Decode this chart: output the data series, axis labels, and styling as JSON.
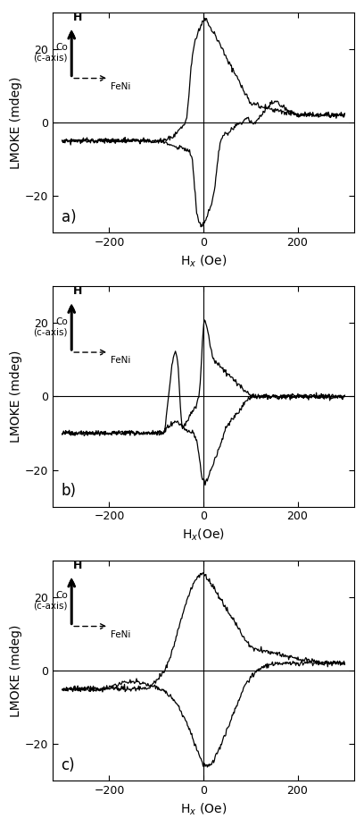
{
  "panels": [
    "a)",
    "b)",
    "c)"
  ],
  "xlabel_a": "H$_x$ (Oe)",
  "xlabel_b": "H$_x$(Oe)",
  "xlabel_c": "H$_x$ (Oe)",
  "ylabel": "LMOKE (mdeg)",
  "xlim": [
    -320,
    320
  ],
  "ylim": [
    -30,
    30
  ],
  "xticks": [
    -200,
    0,
    200
  ],
  "yticks": [
    -20,
    0,
    20
  ],
  "bg_color": "#ffffff",
  "line_color": "#000000",
  "figsize": [
    4.08,
    9.25
  ],
  "dpi": 100
}
